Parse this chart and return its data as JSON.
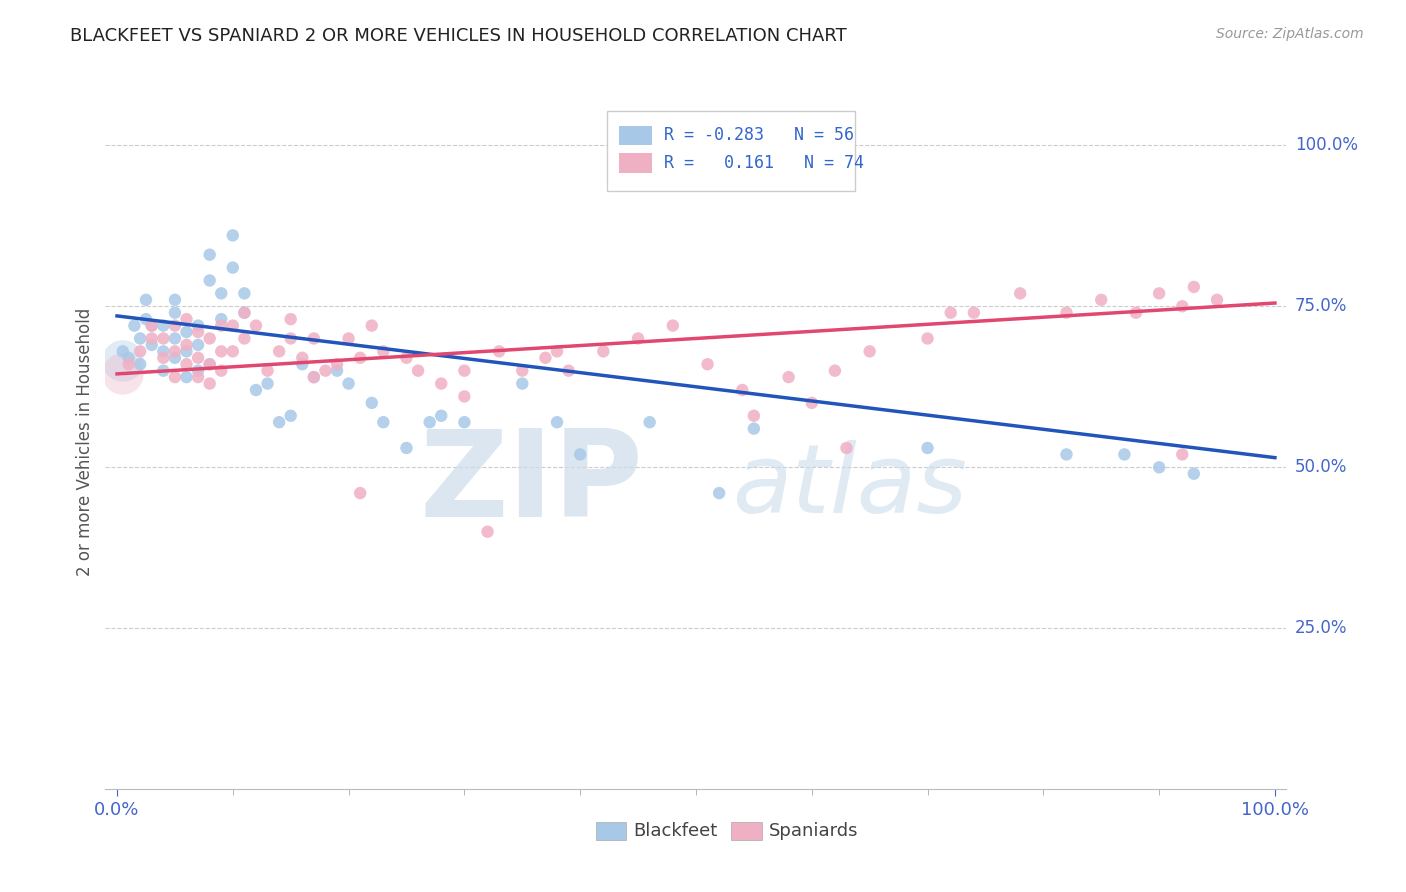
{
  "title": "BLACKFEET VS SPANIARD 2 OR MORE VEHICLES IN HOUSEHOLD CORRELATION CHART",
  "source": "Source: ZipAtlas.com",
  "ylabel": "2 or more Vehicles in Household",
  "ytick_positions": [
    0.25,
    0.5,
    0.75,
    1.0
  ],
  "ytick_labels": [
    "25.0%",
    "50.0%",
    "75.0%",
    "100.0%"
  ],
  "xtick_left": "0.0%",
  "xtick_right": "100.0%",
  "blackfeet_color": "#a8c8e8",
  "blackfeet_line_color": "#2255bb",
  "spaniard_color": "#f0b0c4",
  "spaniard_line_color": "#e04870",
  "grid_color": "#cccccc",
  "bg_color": "#ffffff",
  "title_color": "#222222",
  "axis_label_color": "#4466cc",
  "legend_text_color": "#3366cc",
  "watermark_color": "#ccdcec",
  "marker_size": 80,
  "blue_line": [
    0.0,
    0.735,
    1.0,
    0.515
  ],
  "pink_line": [
    0.0,
    0.645,
    1.0,
    0.755
  ],
  "blackfeet_x": [
    0.005,
    0.01,
    0.015,
    0.02,
    0.02,
    0.025,
    0.025,
    0.03,
    0.03,
    0.04,
    0.04,
    0.04,
    0.05,
    0.05,
    0.05,
    0.05,
    0.06,
    0.06,
    0.06,
    0.07,
    0.07,
    0.07,
    0.08,
    0.08,
    0.08,
    0.09,
    0.09,
    0.1,
    0.1,
    0.11,
    0.11,
    0.12,
    0.13,
    0.14,
    0.15,
    0.16,
    0.17,
    0.19,
    0.2,
    0.22,
    0.23,
    0.25,
    0.27,
    0.28,
    0.3,
    0.35,
    0.38,
    0.4,
    0.46,
    0.52,
    0.55,
    0.7,
    0.82,
    0.87,
    0.9,
    0.93
  ],
  "blackfeet_y": [
    0.68,
    0.67,
    0.72,
    0.7,
    0.66,
    0.73,
    0.76,
    0.69,
    0.72,
    0.65,
    0.68,
    0.72,
    0.67,
    0.7,
    0.74,
    0.76,
    0.64,
    0.68,
    0.71,
    0.65,
    0.69,
    0.72,
    0.79,
    0.83,
    0.66,
    0.73,
    0.77,
    0.81,
    0.86,
    0.74,
    0.77,
    0.62,
    0.63,
    0.57,
    0.58,
    0.66,
    0.64,
    0.65,
    0.63,
    0.6,
    0.57,
    0.53,
    0.57,
    0.58,
    0.57,
    0.63,
    0.57,
    0.52,
    0.57,
    0.46,
    0.56,
    0.53,
    0.52,
    0.52,
    0.5,
    0.49
  ],
  "spaniard_x": [
    0.01,
    0.02,
    0.03,
    0.03,
    0.04,
    0.04,
    0.05,
    0.05,
    0.05,
    0.06,
    0.06,
    0.06,
    0.07,
    0.07,
    0.07,
    0.08,
    0.08,
    0.08,
    0.09,
    0.09,
    0.09,
    0.1,
    0.1,
    0.11,
    0.11,
    0.12,
    0.13,
    0.14,
    0.15,
    0.15,
    0.16,
    0.17,
    0.17,
    0.18,
    0.19,
    0.2,
    0.21,
    0.22,
    0.23,
    0.25,
    0.26,
    0.28,
    0.3,
    0.33,
    0.35,
    0.37,
    0.39,
    0.42,
    0.45,
    0.48,
    0.51,
    0.54,
    0.58,
    0.6,
    0.62,
    0.65,
    0.7,
    0.72,
    0.74,
    0.78,
    0.82,
    0.85,
    0.88,
    0.9,
    0.92,
    0.93,
    0.95,
    0.21,
    0.3,
    0.32,
    0.38,
    0.55,
    0.63,
    0.92
  ],
  "spaniard_y": [
    0.66,
    0.68,
    0.7,
    0.72,
    0.67,
    0.7,
    0.64,
    0.68,
    0.72,
    0.66,
    0.69,
    0.73,
    0.64,
    0.67,
    0.71,
    0.63,
    0.66,
    0.7,
    0.65,
    0.68,
    0.72,
    0.68,
    0.72,
    0.7,
    0.74,
    0.72,
    0.65,
    0.68,
    0.7,
    0.73,
    0.67,
    0.64,
    0.7,
    0.65,
    0.66,
    0.7,
    0.67,
    0.72,
    0.68,
    0.67,
    0.65,
    0.63,
    0.61,
    0.68,
    0.65,
    0.67,
    0.65,
    0.68,
    0.7,
    0.72,
    0.66,
    0.62,
    0.64,
    0.6,
    0.65,
    0.68,
    0.7,
    0.74,
    0.74,
    0.77,
    0.74,
    0.76,
    0.74,
    0.77,
    0.75,
    0.78,
    0.76,
    0.46,
    0.65,
    0.4,
    0.68,
    0.58,
    0.53,
    0.52
  ]
}
